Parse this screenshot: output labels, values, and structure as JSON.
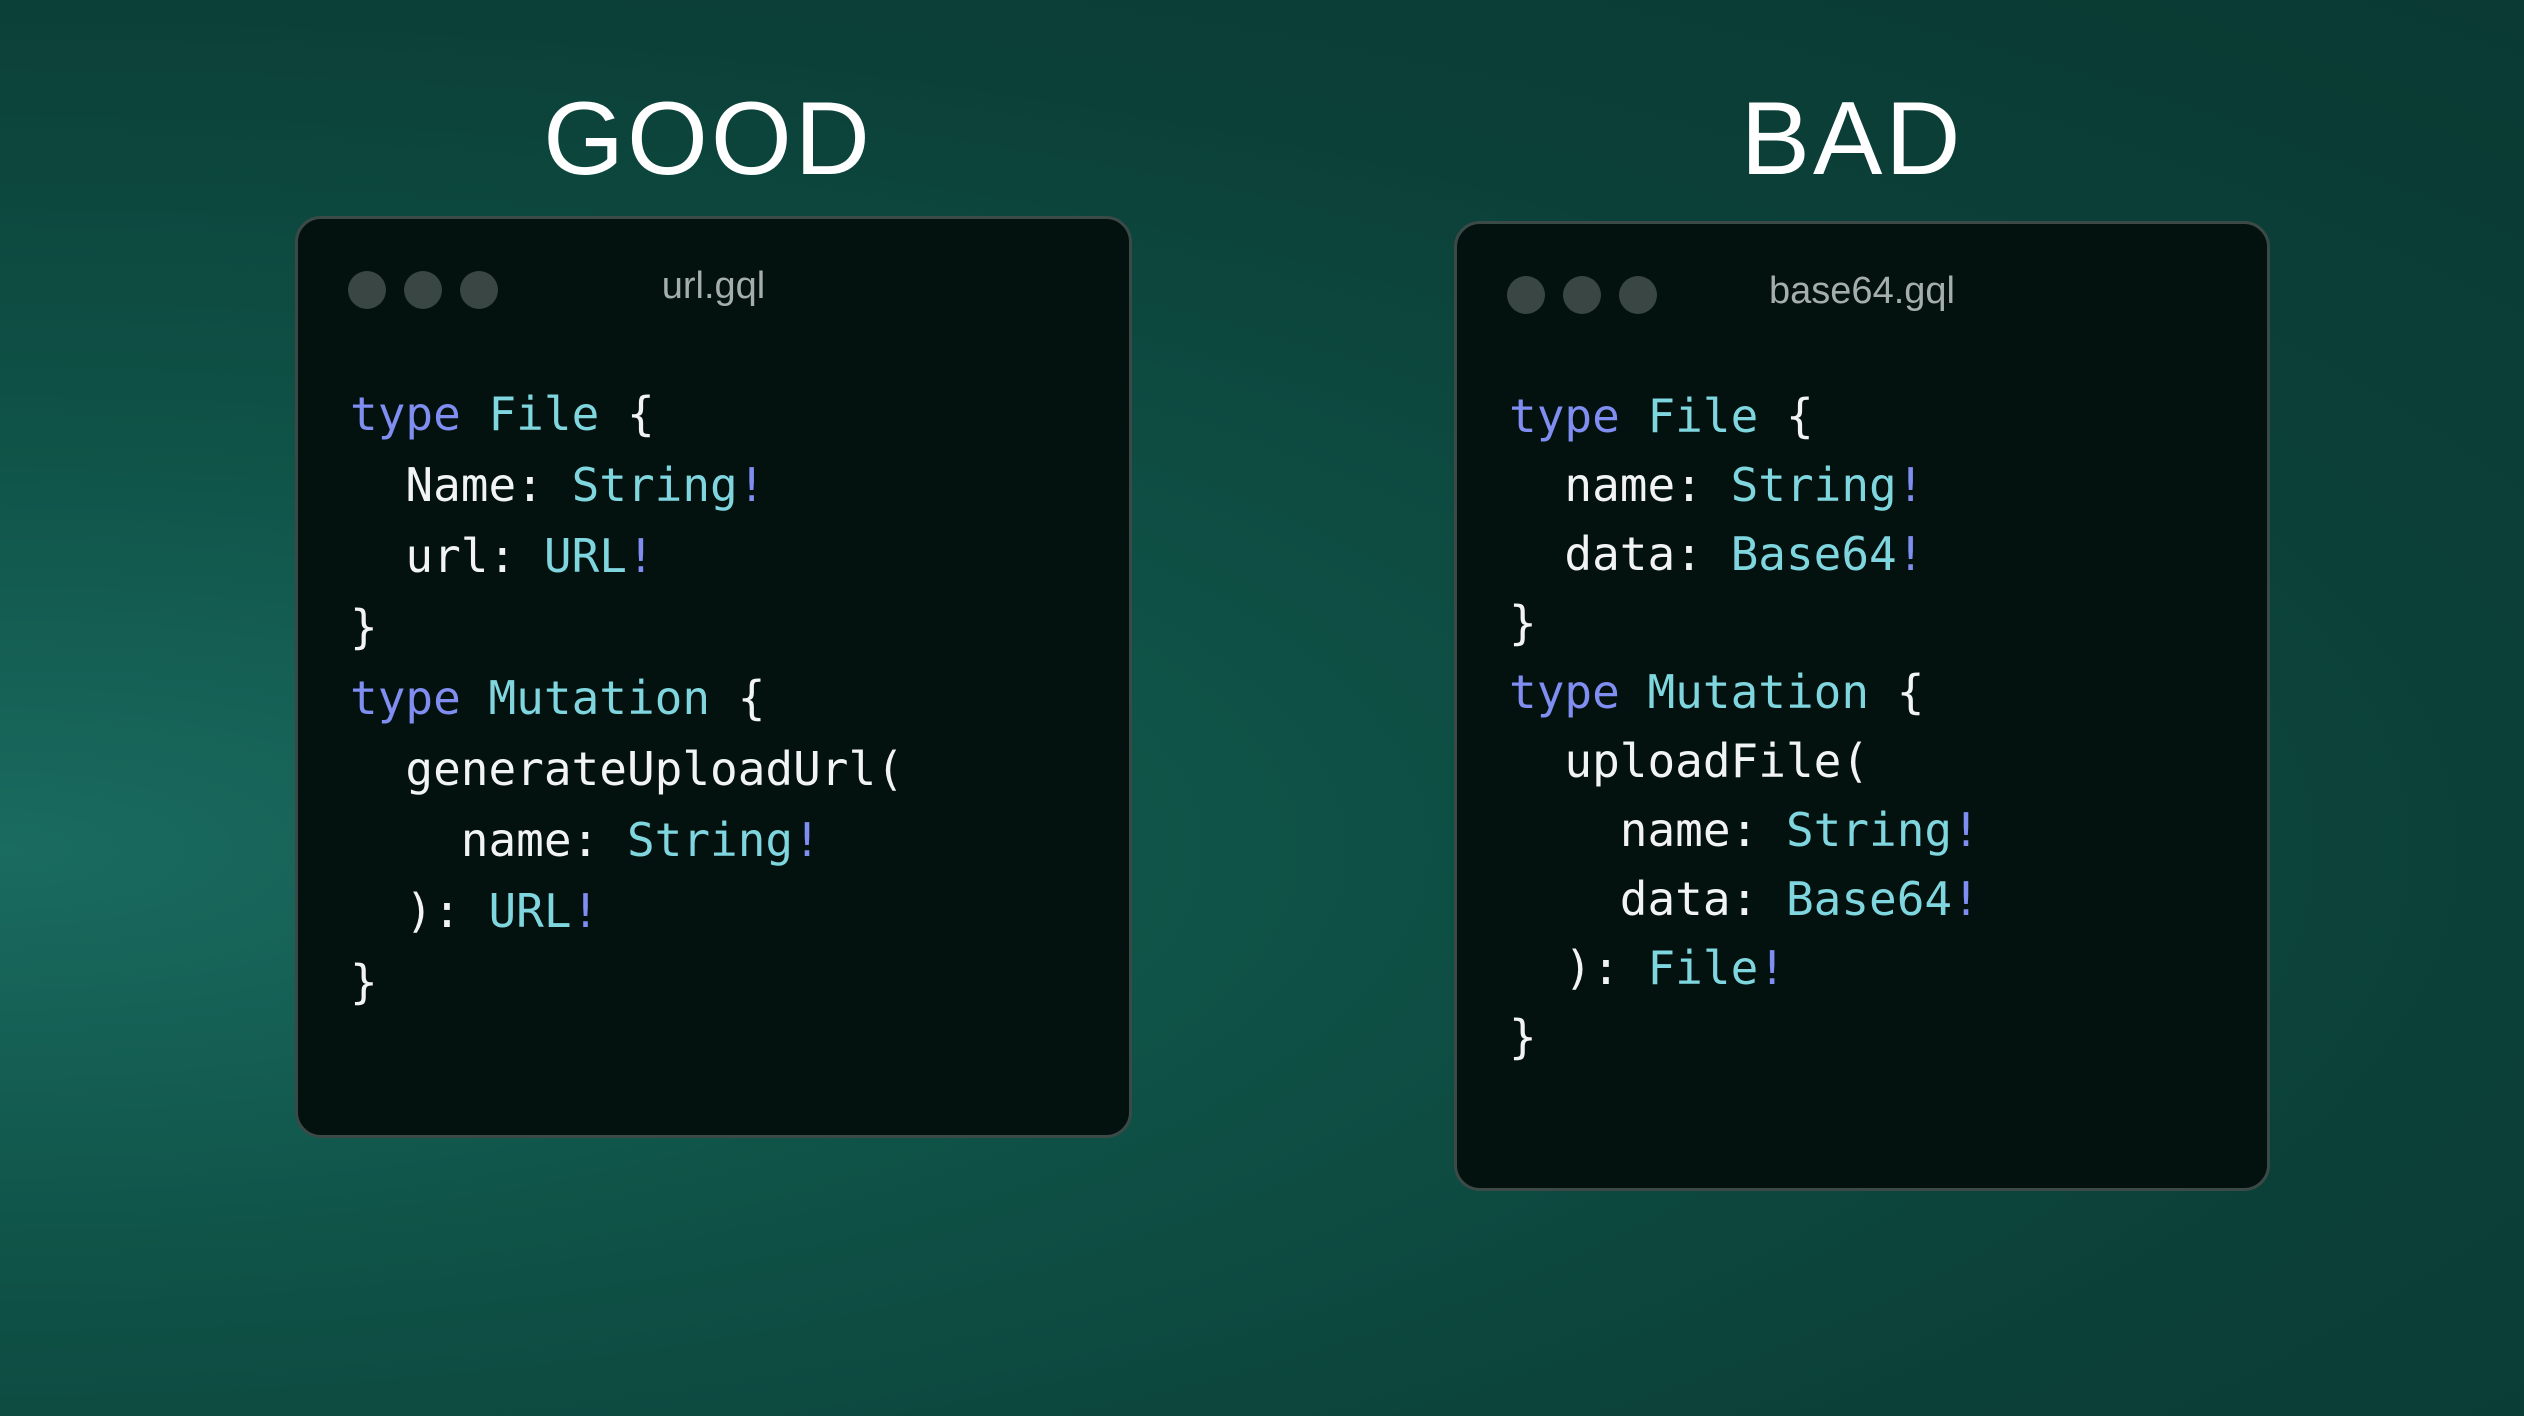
{
  "good": {
    "heading": "GOOD",
    "filename": "url.gql",
    "lines": [
      [
        {
          "t": "type ",
          "c": "kw"
        },
        {
          "t": "File",
          "c": "ty"
        },
        {
          "t": " {",
          "c": ""
        }
      ],
      [
        {
          "t": "  Name: ",
          "c": ""
        },
        {
          "t": "String",
          "c": "ty"
        },
        {
          "t": "!",
          "c": "bang"
        }
      ],
      [
        {
          "t": "  url: ",
          "c": ""
        },
        {
          "t": "URL",
          "c": "ty"
        },
        {
          "t": "!",
          "c": "bang"
        }
      ],
      [
        {
          "t": "}",
          "c": ""
        }
      ],
      [
        {
          "t": "type ",
          "c": "kw"
        },
        {
          "t": "Mutation",
          "c": "ty"
        },
        {
          "t": " {",
          "c": ""
        }
      ],
      [
        {
          "t": "  generateUploadUrl(",
          "c": ""
        }
      ],
      [
        {
          "t": "    name: ",
          "c": ""
        },
        {
          "t": "String",
          "c": "ty"
        },
        {
          "t": "!",
          "c": "bang"
        }
      ],
      [
        {
          "t": "  ): ",
          "c": ""
        },
        {
          "t": "URL",
          "c": "ty"
        },
        {
          "t": "!",
          "c": "bang"
        }
      ],
      [
        {
          "t": "}",
          "c": ""
        }
      ]
    ]
  },
  "bad": {
    "heading": "BAD",
    "filename": "base64.gql",
    "lines": [
      [
        {
          "t": "type ",
          "c": "kw"
        },
        {
          "t": "File",
          "c": "ty"
        },
        {
          "t": " {",
          "c": ""
        }
      ],
      [
        {
          "t": "  name: ",
          "c": ""
        },
        {
          "t": "String",
          "c": "ty"
        },
        {
          "t": "!",
          "c": "bang"
        }
      ],
      [
        {
          "t": "  data: ",
          "c": ""
        },
        {
          "t": "Base64",
          "c": "ty"
        },
        {
          "t": "!",
          "c": "bang"
        }
      ],
      [
        {
          "t": "}",
          "c": ""
        }
      ],
      [
        {
          "t": "type ",
          "c": "kw"
        },
        {
          "t": "Mutation",
          "c": "ty"
        },
        {
          "t": " {",
          "c": ""
        }
      ],
      [
        {
          "t": "  uploadFile(",
          "c": ""
        }
      ],
      [
        {
          "t": "    name: ",
          "c": ""
        },
        {
          "t": "String",
          "c": "ty"
        },
        {
          "t": "!",
          "c": "bang"
        }
      ],
      [
        {
          "t": "    data: ",
          "c": ""
        },
        {
          "t": "Base64",
          "c": "ty"
        },
        {
          "t": "!",
          "c": "bang"
        }
      ],
      [
        {
          "t": "  ): ",
          "c": ""
        },
        {
          "t": "File",
          "c": "ty"
        },
        {
          "t": "!",
          "c": "bang"
        }
      ],
      [
        {
          "t": "}",
          "c": ""
        }
      ]
    ]
  },
  "colors": {
    "keyword": "#7f8ef0",
    "type": "#7fd6de",
    "text": "#f2f4f3",
    "card": "#03110f"
  }
}
